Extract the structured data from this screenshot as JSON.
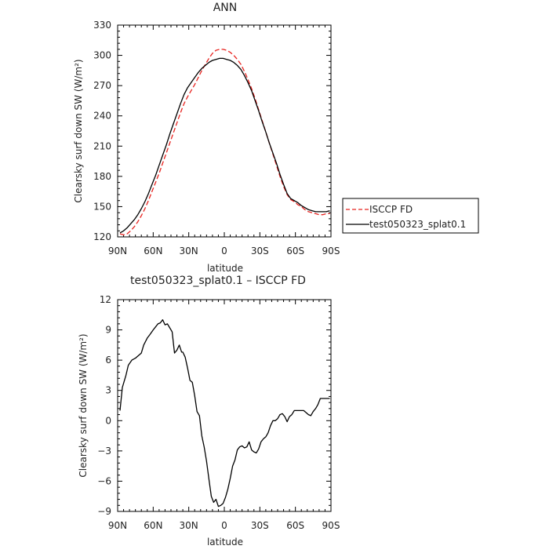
{
  "colors": {
    "isccp": "#e8231f",
    "model": "#000000",
    "diff": "#000000"
  },
  "chart_data": [
    {
      "type": "line",
      "title": "ANN",
      "xlabel": "latitude",
      "ylabel": "Clearsky surf down SW (W/m²)",
      "xlim": [
        90,
        -90
      ],
      "ylim": [
        120,
        330
      ],
      "x_ticks": [
        90,
        60,
        30,
        0,
        -30,
        -60,
        -90
      ],
      "x_tick_labels": [
        "90N",
        "60N",
        "30N",
        "0",
        "30S",
        "60S",
        "90S"
      ],
      "y_ticks": [
        120,
        150,
        180,
        210,
        240,
        270,
        300,
        330
      ],
      "y_tick_labels": [
        "120",
        "150",
        "180",
        "210",
        "240",
        "270",
        "300",
        "330"
      ],
      "legend_position": "outside right",
      "series": [
        {
          "name": "ISCCP FD",
          "style": "dashed",
          "x": [
            88,
            85,
            82,
            79,
            76,
            73,
            70,
            67,
            64,
            61,
            58,
            55,
            52,
            49,
            46,
            43,
            40,
            37,
            34,
            31,
            28,
            25,
            22,
            19,
            16,
            13,
            10,
            7,
            4,
            1,
            -2,
            -5,
            -8,
            -11,
            -14,
            -17,
            -20,
            -23,
            -26,
            -29,
            -32,
            -35,
            -38,
            -41,
            -44,
            -47,
            -50,
            -53,
            -56,
            -59,
            -62,
            -65,
            -68,
            -71,
            -74,
            -77,
            -80,
            -83,
            -86,
            -89
          ],
          "y": [
            123,
            122,
            123,
            126,
            130,
            135,
            141,
            148,
            156,
            165,
            174,
            183,
            193,
            203,
            213,
            223,
            233,
            243,
            252,
            259,
            265,
            271,
            278,
            285,
            291,
            297,
            302,
            305,
            306,
            306,
            305,
            303,
            300,
            296,
            291,
            284,
            276,
            267,
            257,
            246,
            235,
            224,
            213,
            202,
            191,
            180,
            170,
            162,
            157,
            155,
            152,
            150,
            147,
            145,
            144,
            143,
            142,
            142,
            143,
            143
          ]
        },
        {
          "name": "test050323_splat0.1",
          "style": "solid",
          "x": [
            88,
            85,
            82,
            79,
            76,
            73,
            70,
            67,
            64,
            61,
            58,
            55,
            52,
            49,
            46,
            43,
            40,
            37,
            34,
            31,
            28,
            25,
            22,
            19,
            16,
            13,
            10,
            7,
            4,
            1,
            -2,
            -5,
            -8,
            -11,
            -14,
            -17,
            -20,
            -23,
            -26,
            -29,
            -32,
            -35,
            -38,
            -41,
            -44,
            -47,
            -50,
            -53,
            -56,
            -59,
            -62,
            -65,
            -68,
            -71,
            -74,
            -77,
            -80,
            -83,
            -86,
            -89
          ],
          "y": [
            124,
            126,
            129,
            133,
            137,
            142,
            148,
            155,
            163,
            172,
            181,
            191,
            201,
            211,
            222,
            232,
            242,
            252,
            261,
            268,
            273,
            278,
            283,
            287,
            290,
            293,
            295,
            296,
            297,
            297,
            296,
            295,
            293,
            290,
            286,
            280,
            273,
            265,
            255,
            245,
            234,
            224,
            213,
            203,
            193,
            182,
            172,
            163,
            158,
            156,
            154,
            151,
            149,
            147,
            146,
            145,
            145,
            145,
            145,
            146
          ]
        }
      ]
    },
    {
      "type": "line",
      "title": "test050323_splat0.1 – ISCCP FD",
      "xlabel": "latitude",
      "ylabel": "Clearsky surf down SW (W/m²)",
      "xlim": [
        90,
        -90
      ],
      "ylim": [
        -9,
        12
      ],
      "x_ticks": [
        90,
        60,
        30,
        0,
        -30,
        -60,
        -90
      ],
      "x_tick_labels": [
        "90N",
        "60N",
        "30N",
        "0",
        "30S",
        "60S",
        "90S"
      ],
      "y_ticks": [
        -9,
        -6,
        -3,
        0,
        3,
        6,
        9,
        12
      ],
      "y_tick_labels": [
        "−9",
        "−6",
        "−3",
        "0",
        "3",
        "6",
        "9",
        "12"
      ],
      "series": [
        {
          "style": "solid",
          "x": [
            88,
            86,
            83,
            81,
            78,
            75,
            73,
            70,
            68,
            65,
            63,
            60,
            58,
            56,
            54,
            52,
            50,
            48,
            46,
            44,
            42,
            40,
            38,
            36,
            35,
            33,
            31,
            29,
            27,
            25,
            23,
            21,
            19,
            17,
            15,
            13,
            11,
            9,
            7,
            5,
            3,
            1,
            -1,
            -3,
            -5,
            -7,
            -9,
            -11,
            -13,
            -15,
            -17,
            -19,
            -21,
            -23,
            -25,
            -27,
            -29,
            -31,
            -33,
            -35,
            -37,
            -39,
            -41,
            -43,
            -45,
            -47,
            -49,
            -51,
            -53,
            -55,
            -57,
            -59,
            -61,
            -63,
            -65,
            -67,
            -69,
            -71,
            -73,
            -75,
            -77,
            -79,
            -81,
            -83,
            -85,
            -87,
            -89
          ],
          "y": [
            1.0,
            3.3,
            4.5,
            5.5,
            6.0,
            6.2,
            6.4,
            6.7,
            7.5,
            8.2,
            8.5,
            9.0,
            9.3,
            9.6,
            9.7,
            10.0,
            9.5,
            9.6,
            9.2,
            8.8,
            6.7,
            7.0,
            7.5,
            6.8,
            6.8,
            6.3,
            5.2,
            4.0,
            3.8,
            2.5,
            0.9,
            0.5,
            -1.5,
            -2.6,
            -4.0,
            -5.8,
            -7.5,
            -8.1,
            -7.8,
            -8.5,
            -8.4,
            -8.2,
            -7.6,
            -6.8,
            -5.7,
            -4.5,
            -3.9,
            -2.9,
            -2.6,
            -2.5,
            -2.7,
            -2.6,
            -2.1,
            -2.9,
            -3.1,
            -3.2,
            -2.8,
            -2.1,
            -1.8,
            -1.6,
            -1.2,
            -0.5,
            0.0,
            0.0,
            0.2,
            0.6,
            0.7,
            0.4,
            -0.1,
            0.4,
            0.6,
            1.0,
            1.0,
            1.0,
            1.0,
            1.0,
            0.8,
            0.6,
            0.5,
            0.9,
            1.2,
            1.6,
            2.2,
            2.2,
            2.2,
            2.2,
            2.2
          ]
        }
      ]
    }
  ]
}
